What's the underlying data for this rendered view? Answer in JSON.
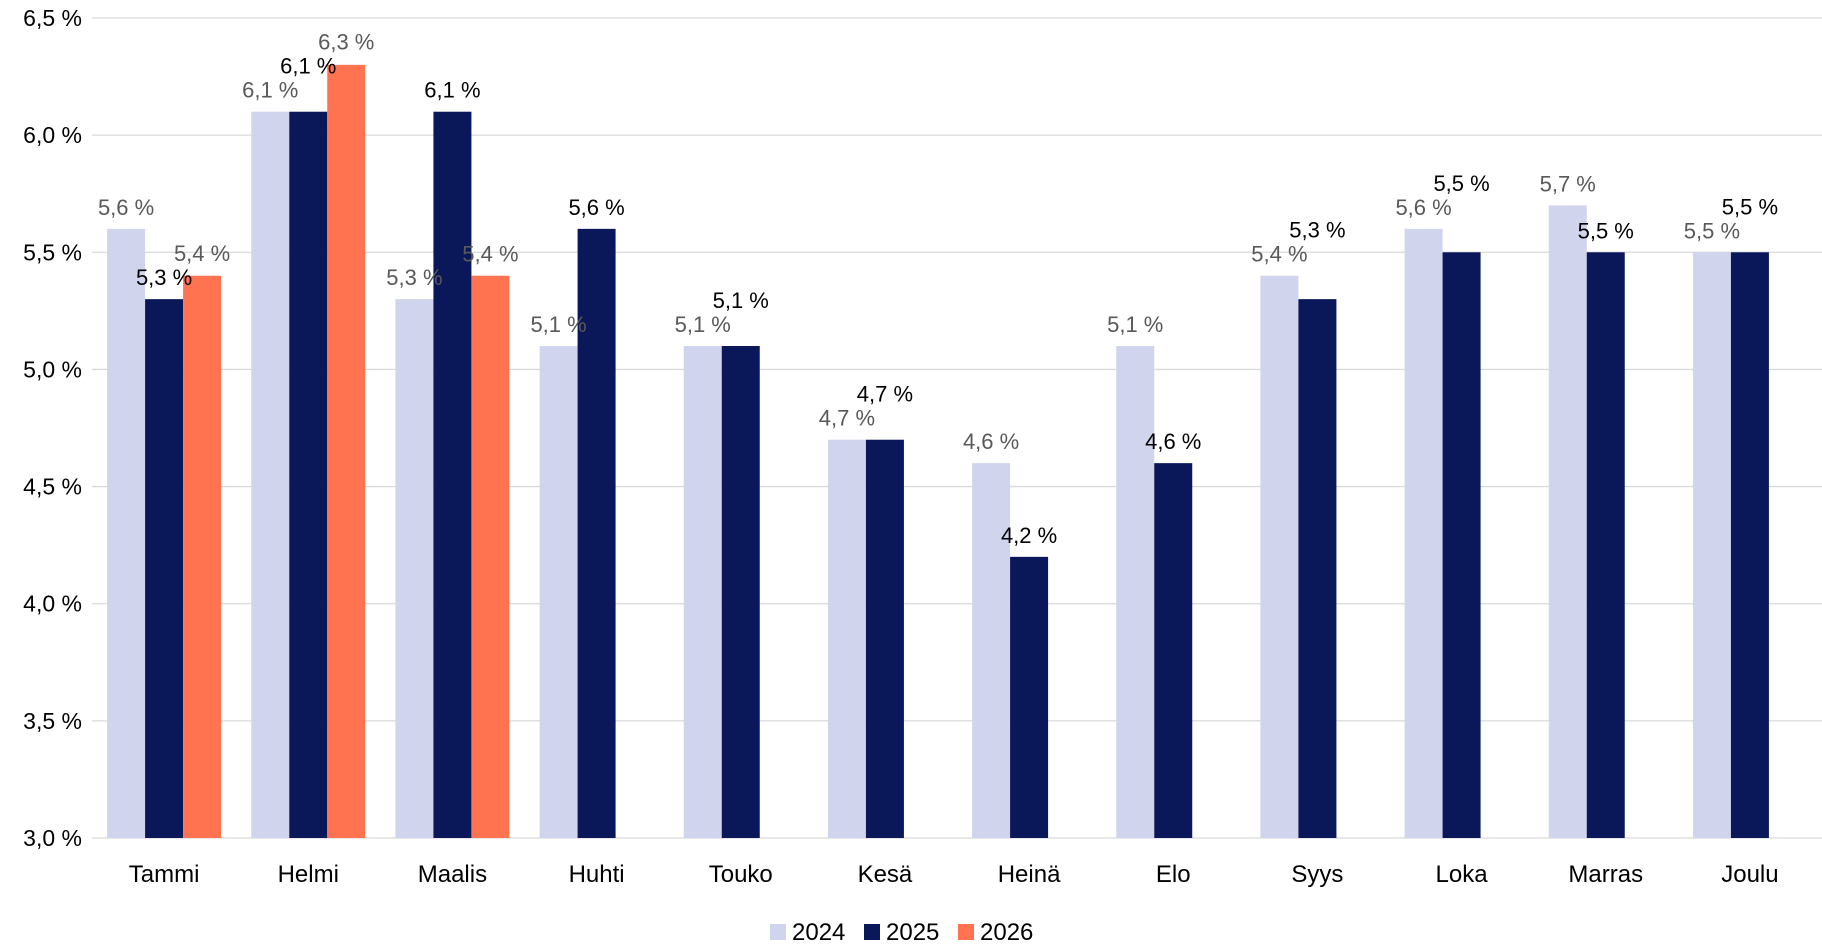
{
  "chart_data": {
    "type": "bar",
    "categories": [
      "Tammi",
      "Helmi",
      "Maalis",
      "Huhti",
      "Touko",
      "Kesä",
      "Heinä",
      "Elo",
      "Syys",
      "Loka",
      "Marras",
      "Joulu"
    ],
    "series": [
      {
        "name": "2024",
        "color": "#d0d4ec",
        "values": [
          5.6,
          6.1,
          5.3,
          5.1,
          5.1,
          4.7,
          4.6,
          5.1,
          5.4,
          5.6,
          5.7,
          5.5
        ],
        "labels": [
          "5,6 %",
          "6,1 %",
          "5,3 %",
          "5,1 %",
          "5,1 %",
          "4,7 %",
          "4,6 %",
          "5,1 %",
          "5,4 %",
          "5,6 %",
          "5,7 %",
          "5,5 %"
        ]
      },
      {
        "name": "2025",
        "color": "#0a185a",
        "values": [
          5.3,
          6.1,
          6.1,
          5.6,
          5.1,
          4.7,
          4.2,
          4.6,
          5.3,
          5.5,
          5.5,
          5.5
        ],
        "labels": [
          "5,3 %",
          "6,1 %",
          "6,1 %",
          "5,6 %",
          "5,1 %",
          "4,7 %",
          "4,2 %",
          "4,6 %",
          "5,3 %",
          "5,5 %",
          "5,5 %",
          "5,5 %"
        ]
      },
      {
        "name": "2026",
        "color": "#ff7350",
        "values": [
          5.4,
          6.3,
          5.4,
          null,
          null,
          null,
          null,
          null,
          null,
          null,
          null,
          null
        ],
        "labels": [
          "5,4 %",
          "6,3 %",
          "5,4 %",
          null,
          null,
          null,
          null,
          null,
          null,
          null,
          null,
          null
        ]
      }
    ],
    "yticks": [
      3.0,
      3.5,
      4.0,
      4.5,
      5.0,
      5.5,
      6.0,
      6.5
    ],
    "ytick_labels": [
      "3,0 %",
      "3,5 %",
      "4,0 %",
      "4,5 %",
      "5,0 %",
      "5,5 %",
      "6,0 %",
      "6,5 %"
    ],
    "ylim": [
      3.0,
      6.5
    ],
    "grid": true,
    "legend_position": "bottom",
    "gridline_color": "#d9d9d9"
  }
}
